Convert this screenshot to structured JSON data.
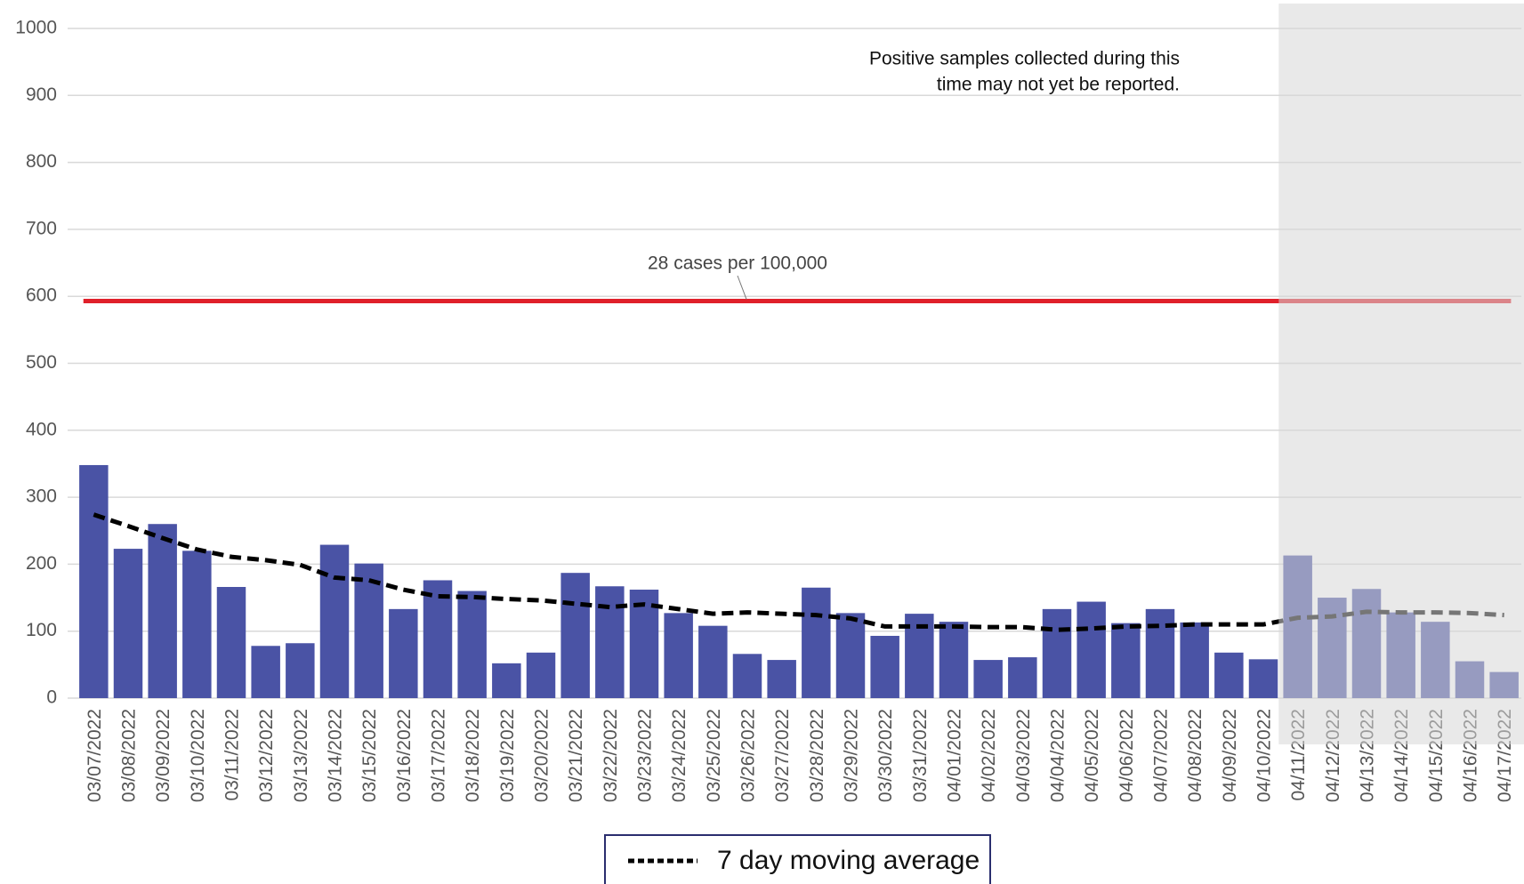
{
  "chart_data": {
    "type": "bar",
    "categories": [
      "03/07/2022",
      "03/08/2022",
      "03/09/2022",
      "03/10/2022",
      "03/11/2022",
      "03/12/2022",
      "03/13/2022",
      "03/14/2022",
      "03/15/2022",
      "03/16/2022",
      "03/17/2022",
      "03/18/2022",
      "03/19/2022",
      "03/20/2022",
      "03/21/2022",
      "03/22/2022",
      "03/23/2022",
      "03/24/2022",
      "03/25/2022",
      "03/26/2022",
      "03/27/2022",
      "03/28/2022",
      "03/29/2022",
      "03/30/2022",
      "03/31/2022",
      "04/01/2022",
      "04/02/2022",
      "04/03/2022",
      "04/04/2022",
      "04/05/2022",
      "04/06/2022",
      "04/07/2022",
      "04/08/2022",
      "04/09/2022",
      "04/10/2022",
      "04/11/2022",
      "04/12/2022",
      "04/13/2022",
      "04/14/2022",
      "04/15/2022",
      "04/16/2022",
      "04/17/2022"
    ],
    "values": [
      348,
      223,
      260,
      220,
      166,
      78,
      82,
      229,
      201,
      133,
      176,
      160,
      52,
      68,
      187,
      167,
      162,
      127,
      108,
      66,
      57,
      165,
      127,
      93,
      126,
      114,
      57,
      61,
      133,
      144,
      112,
      133,
      113,
      68,
      58,
      213,
      150,
      163,
      128,
      114,
      55,
      39
    ],
    "color": "#4a53a5",
    "lines": [
      {
        "name": "7 day moving average",
        "color": "#000000",
        "values": [
          274,
          257,
          239,
          222,
          211,
          206,
          199,
          180,
          176,
          162,
          152,
          151,
          148,
          146,
          141,
          136,
          140,
          133,
          126,
          128,
          126,
          124,
          119,
          107,
          107,
          107,
          106,
          106,
          102,
          104,
          107,
          108,
          110,
          110,
          110,
          120,
          122,
          129,
          128,
          128,
          127,
          124
        ]
      }
    ],
    "reference_line": {
      "value": 593,
      "label": "28 cases per 100,000",
      "color": "#e0202a"
    },
    "annotation": [
      "Positive samples collected during this",
      "time may not yet be reported."
    ],
    "shaded_from": "04/11/2022",
    "ylim": [
      0,
      1000
    ],
    "yticks": [
      0,
      100,
      200,
      300,
      400,
      500,
      600,
      700,
      800,
      900,
      1000
    ],
    "grid": true
  }
}
